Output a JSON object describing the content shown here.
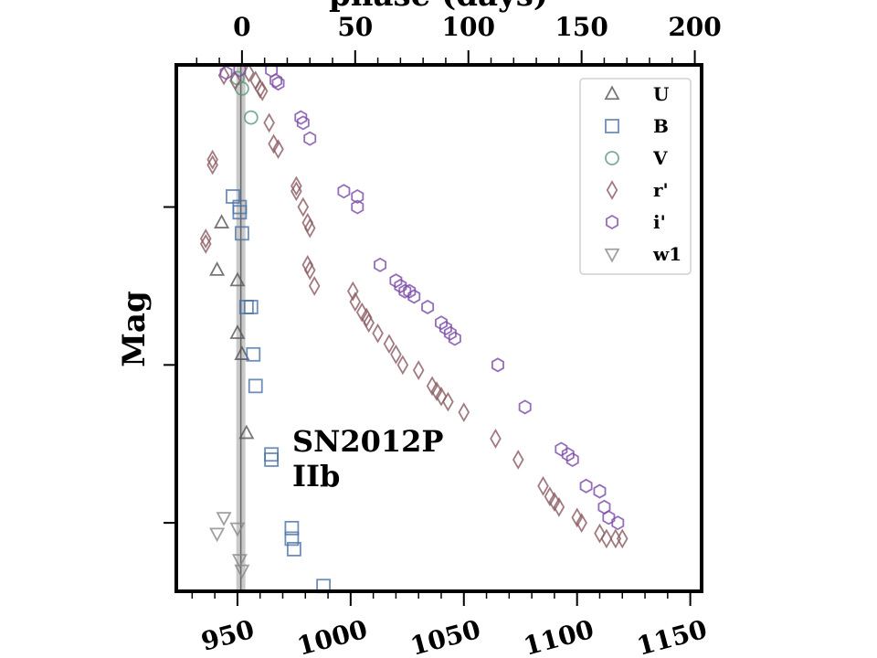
{
  "chart_data": {
    "type": "scatter",
    "title": "",
    "xlabel": "",
    "x2label": "phase (days)",
    "ylabel": "Mag",
    "xlim": [
      923,
      1155
    ],
    "ylim_top_to_bottom": [
      0,
      10
    ],
    "y_inverted": true,
    "x_ticks": [
      950,
      1000,
      1050,
      1100,
      1150
    ],
    "x_tick_labels": [
      "950",
      "1000",
      "1050",
      "1100",
      "1150"
    ],
    "phase_offset": 952,
    "phase_ticks": [
      0,
      50,
      100,
      150,
      200
    ],
    "phase_tick_labels": [
      "0",
      "50",
      "100",
      "150",
      "200"
    ],
    "y_ticks": [
      2.7,
      5.7,
      8.7
    ],
    "y_tick_labels": [
      "",
      "",
      ""
    ],
    "grid": false,
    "legend_position": "top-right",
    "annotation": [
      "SN2012P",
      "IIb"
    ],
    "peak_band": {
      "x_start": 949.5,
      "x_end": 953.5
    },
    "series": [
      {
        "name": "U",
        "marker": "triangle-up",
        "color": "#555555",
        "points": [
          [
            943,
            3.0
          ],
          [
            941,
            3.9
          ],
          [
            950,
            4.1
          ],
          [
            950,
            5.1
          ],
          [
            952,
            5.5
          ],
          [
            954,
            7.0
          ]
        ]
      },
      {
        "name": "B",
        "marker": "square",
        "color": "#4a72a8",
        "points": [
          [
            948,
            2.5
          ],
          [
            951,
            2.8
          ],
          [
            951,
            2.7
          ],
          [
            952,
            3.2
          ],
          [
            954,
            4.6
          ],
          [
            956,
            4.6
          ],
          [
            957,
            5.5
          ],
          [
            958,
            6.1
          ],
          [
            965,
            7.4
          ],
          [
            965,
            7.5
          ],
          [
            974,
            8.8
          ],
          [
            974,
            9.0
          ],
          [
            975,
            9.2
          ],
          [
            988,
            9.9
          ]
        ]
      },
      {
        "name": "V",
        "marker": "circle",
        "color": "#5a9a7a",
        "points": [
          [
            950,
            0.25
          ],
          [
            952,
            0.45
          ],
          [
            956,
            1.0
          ]
        ]
      },
      {
        "name": "r'",
        "marker": "diamond",
        "color": "#8a5a60",
        "points": [
          [
            944,
            0.2
          ],
          [
            949,
            0.3
          ],
          [
            955,
            0.15
          ],
          [
            958,
            0.3
          ],
          [
            960,
            0.45
          ],
          [
            961,
            0.5
          ],
          [
            939,
            1.8
          ],
          [
            939,
            1.9
          ],
          [
            964,
            1.1
          ],
          [
            966,
            1.5
          ],
          [
            968,
            1.6
          ],
          [
            976,
            2.4
          ],
          [
            976,
            2.3
          ],
          [
            979,
            2.7
          ],
          [
            981,
            3.0
          ],
          [
            982,
            3.1
          ],
          [
            936,
            3.3
          ],
          [
            936,
            3.4
          ],
          [
            981,
            3.8
          ],
          [
            982,
            3.9
          ],
          [
            984,
            4.2
          ],
          [
            1001,
            4.3
          ],
          [
            1002,
            4.5
          ],
          [
            1005,
            4.7
          ],
          [
            1007,
            4.8
          ],
          [
            1008,
            4.9
          ],
          [
            1012,
            5.1
          ],
          [
            1017,
            5.3
          ],
          [
            1020,
            5.5
          ],
          [
            1023,
            5.7
          ],
          [
            1030,
            5.8
          ],
          [
            1036,
            6.1
          ],
          [
            1038,
            6.2
          ],
          [
            1040,
            6.3
          ],
          [
            1043,
            6.4
          ],
          [
            1050,
            6.6
          ],
          [
            1064,
            7.1
          ],
          [
            1074,
            7.5
          ],
          [
            1085,
            8.0
          ],
          [
            1088,
            8.2
          ],
          [
            1090,
            8.3
          ],
          [
            1092,
            8.4
          ],
          [
            1100,
            8.6
          ],
          [
            1102,
            8.7
          ],
          [
            1110,
            8.9
          ],
          [
            1113,
            9.0
          ],
          [
            1117,
            9.0
          ],
          [
            1120,
            9.0
          ]
        ]
      },
      {
        "name": "i'",
        "marker": "hexagon",
        "color": "#7a4aa8",
        "points": [
          [
            945,
            0.15
          ],
          [
            951,
            0.1
          ],
          [
            965,
            0.1
          ],
          [
            967,
            0.3
          ],
          [
            968,
            0.35
          ],
          [
            978,
            1.0
          ],
          [
            979,
            1.1
          ],
          [
            982,
            1.4
          ],
          [
            997,
            2.4
          ],
          [
            1003,
            2.5
          ],
          [
            1003,
            2.7
          ],
          [
            1013,
            3.8
          ],
          [
            1020,
            4.1
          ],
          [
            1022,
            4.2
          ],
          [
            1024,
            4.3
          ],
          [
            1026,
            4.3
          ],
          [
            1028,
            4.4
          ],
          [
            1034,
            4.6
          ],
          [
            1040,
            4.9
          ],
          [
            1042,
            5.0
          ],
          [
            1044,
            5.1
          ],
          [
            1046,
            5.2
          ],
          [
            1065,
            5.7
          ],
          [
            1077,
            6.5
          ],
          [
            1093,
            7.3
          ],
          [
            1096,
            7.4
          ],
          [
            1098,
            7.5
          ],
          [
            1104,
            8.0
          ],
          [
            1110,
            8.1
          ],
          [
            1112,
            8.4
          ],
          [
            1114,
            8.6
          ],
          [
            1118,
            8.7
          ]
        ]
      },
      {
        "name": "w1",
        "marker": "triangle-down",
        "color": "#888888",
        "points": [
          [
            944,
            8.6
          ],
          [
            941,
            8.9
          ],
          [
            950,
            8.8
          ],
          [
            951,
            9.4
          ],
          [
            952,
            9.6
          ]
        ]
      }
    ]
  }
}
